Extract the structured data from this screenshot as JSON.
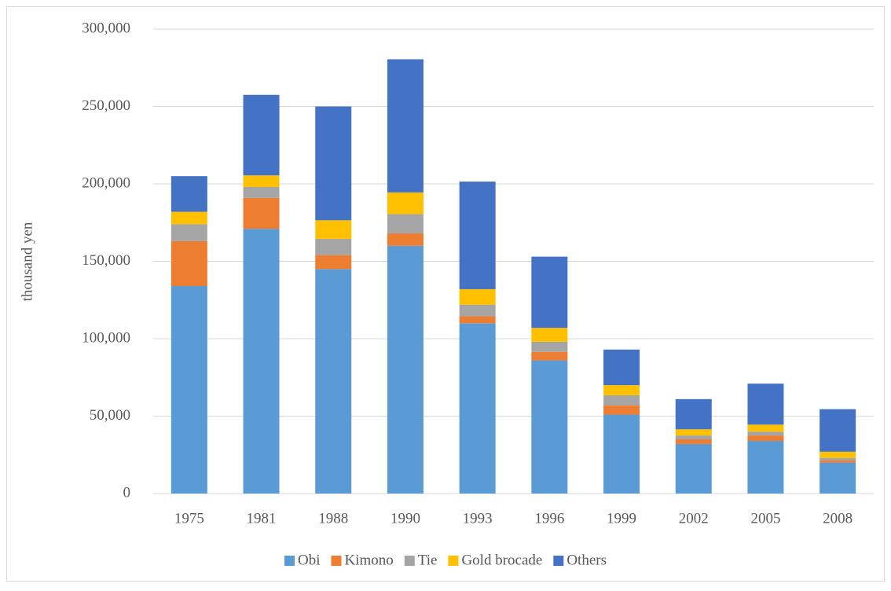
{
  "chart_data": {
    "type": "stacked_bar",
    "ylabel": "thousand yen",
    "categories": [
      "1975",
      "1981",
      "1988",
      "1990",
      "1993",
      "1996",
      "1999",
      "2002",
      "2005",
      "2008"
    ],
    "series": [
      {
        "name": "Obi",
        "color": "#5b9bd5",
        "values": [
          134000,
          171000,
          145000,
          160000,
          110000,
          86000,
          51000,
          32000,
          34000,
          20000
        ]
      },
      {
        "name": "Kimono",
        "color": "#ed7d31",
        "values": [
          29000,
          20000,
          9000,
          8000,
          4500,
          5500,
          6000,
          3000,
          3500,
          1500
        ]
      },
      {
        "name": "Tie",
        "color": "#a5a5a5",
        "values": [
          11000,
          7000,
          10500,
          12500,
          7500,
          6500,
          6500,
          2500,
          2500,
          1500
        ]
      },
      {
        "name": "Gold brocade",
        "color": "#ffc000",
        "values": [
          8000,
          7500,
          12000,
          14000,
          10000,
          9000,
          6500,
          4000,
          4500,
          4000
        ]
      },
      {
        "name": "Others",
        "color": "#4472c4",
        "values": [
          23000,
          52000,
          73500,
          86000,
          69500,
          46000,
          23000,
          19500,
          26500,
          27500
        ]
      }
    ],
    "ylim": [
      0,
      300000
    ],
    "yticks": [
      0,
      {
        "value": 50000,
        "label": "50,000"
      },
      {
        "value": 100000,
        "label": "100,000"
      },
      {
        "value": 150000,
        "label": "150,000"
      },
      {
        "value": 200000,
        "label": "200,000"
      },
      {
        "value": 250000,
        "label": "250,000"
      },
      {
        "value": 300000,
        "label": "300,000"
      }
    ],
    "grid": true,
    "legend": "bottom"
  }
}
